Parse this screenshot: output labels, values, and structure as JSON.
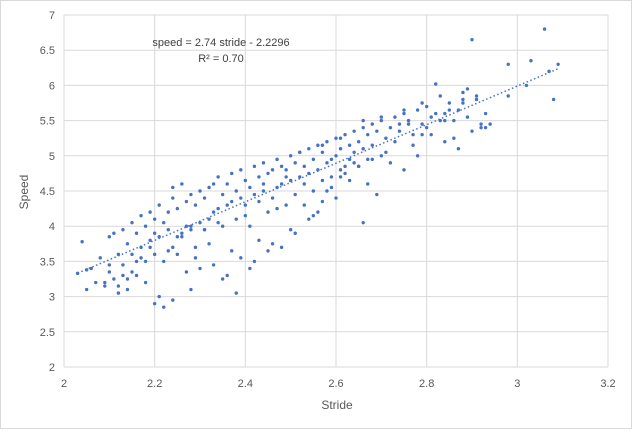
{
  "chart_data": {
    "type": "scatter",
    "title": "",
    "xlabel": "Stride",
    "ylabel": "Speed",
    "xlim": [
      2,
      3.2
    ],
    "ylim": [
      2,
      7
    ],
    "xticks": [
      2,
      2.2,
      2.4,
      2.6,
      2.8,
      3,
      3.2
    ],
    "yticks": [
      2,
      2.5,
      3,
      3.5,
      4,
      4.5,
      5,
      5.5,
      6,
      6.5,
      7
    ],
    "xtick_labels": [
      "2",
      "2.2",
      "2.4",
      "2.6",
      "2.8",
      "3",
      "3.2"
    ],
    "ytick_labels": [
      "2",
      "2.5",
      "3",
      "3.5",
      "4",
      "4.5",
      "5",
      "5.5",
      "6",
      "6.5",
      "7"
    ],
    "grid": "vertical and horizontal major gridlines",
    "legend": "none",
    "colors": {
      "points": "#4472c4",
      "trendline": "#4472c4",
      "gridlines": "#d9d9d9"
    },
    "trendline": {
      "type": "linear",
      "slope": 2.74,
      "intercept": -2.2296,
      "x_range": [
        2.03,
        3.09
      ],
      "style": "dotted"
    },
    "annotations": {
      "equation": "speed = 2.74 stride - 2.2296",
      "r_squared": "R² = 0.70"
    },
    "series": [
      {
        "x": [
          2.03,
          2.04,
          2.05,
          2.06,
          2.08,
          2.09,
          2.1,
          2.1,
          2.11,
          2.11,
          2.12,
          2.12,
          2.13,
          2.13,
          2.14,
          2.14,
          2.15,
          2.15,
          2.16,
          2.16,
          2.17,
          2.17,
          2.18,
          2.18,
          2.19,
          2.19,
          2.2,
          2.2,
          2.21,
          2.21,
          2.22,
          2.22,
          2.23,
          2.23,
          2.24,
          2.24,
          2.25,
          2.25,
          2.26,
          2.26,
          2.27,
          2.27,
          2.28,
          2.28,
          2.29,
          2.29,
          2.3,
          2.3,
          2.31,
          2.31,
          2.32,
          2.32,
          2.33,
          2.33,
          2.34,
          2.34,
          2.35,
          2.35,
          2.36,
          2.36,
          2.37,
          2.37,
          2.38,
          2.38,
          2.39,
          2.39,
          2.4,
          2.4,
          2.41,
          2.41,
          2.42,
          2.42,
          2.43,
          2.43,
          2.44,
          2.44,
          2.45,
          2.45,
          2.46,
          2.46,
          2.47,
          2.47,
          2.48,
          2.48,
          2.49,
          2.49,
          2.5,
          2.5,
          2.51,
          2.51,
          2.52,
          2.52,
          2.53,
          2.53,
          2.54,
          2.54,
          2.55,
          2.55,
          2.56,
          2.56,
          2.57,
          2.57,
          2.58,
          2.58,
          2.59,
          2.59,
          2.6,
          2.6,
          2.61,
          2.61,
          2.62,
          2.62,
          2.63,
          2.63,
          2.64,
          2.64,
          2.65,
          2.65,
          2.66,
          2.66,
          2.67,
          2.67,
          2.68,
          2.68,
          2.69,
          2.7,
          2.71,
          2.72,
          2.73,
          2.74,
          2.75,
          2.76,
          2.77,
          2.78,
          2.79,
          2.8,
          2.81,
          2.82,
          2.83,
          2.84,
          2.85,
          2.86,
          2.87,
          2.88,
          2.89,
          2.9,
          2.91,
          2.92,
          2.93,
          2.98,
          3.03,
          3.06,
          3.07,
          3.08,
          3.09,
          2.05,
          2.09,
          2.12,
          2.14,
          2.18,
          2.21,
          2.24,
          2.27,
          2.3,
          2.33,
          2.36,
          2.39,
          2.42,
          2.45,
          2.48,
          2.51,
          2.54,
          2.57,
          2.6,
          2.63,
          2.66,
          2.69,
          2.72,
          2.75,
          2.78,
          2.81,
          2.84,
          2.87,
          2.9,
          2.2,
          2.22,
          2.25,
          2.28,
          2.35,
          2.38,
          2.41,
          2.46,
          2.5,
          2.53,
          2.56,
          2.59,
          2.62,
          2.65,
          2.68,
          2.71,
          2.74,
          2.77,
          2.8,
          2.83,
          2.86,
          2.89,
          2.92,
          2.13,
          2.16,
          2.19,
          2.23,
          2.26,
          2.29,
          2.32,
          2.37,
          2.43,
          2.47,
          2.55,
          2.58,
          2.61,
          2.64,
          2.67,
          2.7,
          2.73,
          2.76,
          2.79,
          2.82,
          2.85,
          2.88,
          2.91,
          2.94,
          2.07,
          2.1,
          2.15,
          2.17,
          2.2,
          2.24,
          2.28,
          2.31,
          2.34,
          2.4,
          2.44,
          2.49,
          2.52,
          2.57,
          2.61,
          2.66,
          2.7,
          2.75,
          2.79,
          2.84,
          2.88,
          2.93,
          2.98,
          3.02
        ],
        "y": [
          3.33,
          3.78,
          3.38,
          3.4,
          3.55,
          3.2,
          3.85,
          3.35,
          3.9,
          3.25,
          3.6,
          3.15,
          3.95,
          3.45,
          3.75,
          3.1,
          4.05,
          3.6,
          3.9,
          3.3,
          4.15,
          3.7,
          4.0,
          3.5,
          4.2,
          3.8,
          4.1,
          3.6,
          4.3,
          3.85,
          4.05,
          3.5,
          4.2,
          3.95,
          4.55,
          3.7,
          4.25,
          3.85,
          4.6,
          3.9,
          4.35,
          4.0,
          4.45,
          3.95,
          4.3,
          3.7,
          4.5,
          4.05,
          4.4,
          3.95,
          4.55,
          4.1,
          4.6,
          4.2,
          4.7,
          4.25,
          4.45,
          4.0,
          4.6,
          4.3,
          4.75,
          4.35,
          4.5,
          4.1,
          4.8,
          4.4,
          4.65,
          4.3,
          4.55,
          4.0,
          4.85,
          4.45,
          4.7,
          4.35,
          4.9,
          4.5,
          4.75,
          4.2,
          4.8,
          4.4,
          4.95,
          4.55,
          4.85,
          4.6,
          4.7,
          4.3,
          5.0,
          4.65,
          4.9,
          4.45,
          5.05,
          4.7,
          4.85,
          4.6,
          5.1,
          4.75,
          4.95,
          4.5,
          5.15,
          4.8,
          5.05,
          4.65,
          5.2,
          4.9,
          4.95,
          4.7,
          5.25,
          5.0,
          5.1,
          4.8,
          5.3,
          4.85,
          5.15,
          4.95,
          5.35,
          5.05,
          5.2,
          4.85,
          5.4,
          5.1,
          5.3,
          4.95,
          5.45,
          5.15,
          5.35,
          5.5,
          5.25,
          5.4,
          5.55,
          5.45,
          5.6,
          5.5,
          5.3,
          5.65,
          5.45,
          5.7,
          5.55,
          6.02,
          5.85,
          5.6,
          5.75,
          5.5,
          5.65,
          5.9,
          5.95,
          6.65,
          5.8,
          5.45,
          5.4,
          6.3,
          6.35,
          6.8,
          6.2,
          5.8,
          6.3,
          3.1,
          3.15,
          3.05,
          3.25,
          3.2,
          3.0,
          2.95,
          3.35,
          3.4,
          3.45,
          3.3,
          3.55,
          3.5,
          3.65,
          3.7,
          3.9,
          4.1,
          4.35,
          4.4,
          4.65,
          4.05,
          4.45,
          4.9,
          4.8,
          5.0,
          5.3,
          5.2,
          5.1,
          5.35,
          2.9,
          2.85,
          3.6,
          3.1,
          3.25,
          3.05,
          3.4,
          3.75,
          3.95,
          4.3,
          4.2,
          4.55,
          4.75,
          4.85,
          4.95,
          5.05,
          5.35,
          5.15,
          5.4,
          5.5,
          5.25,
          5.55,
          5.4,
          3.3,
          3.5,
          3.7,
          3.65,
          3.85,
          3.55,
          3.75,
          3.65,
          3.8,
          4.25,
          4.15,
          4.5,
          4.7,
          4.9,
          4.6,
          5.0,
          5.2,
          5.45,
          5.3,
          5.6,
          5.65,
          5.75,
          5.85,
          5.45,
          3.2,
          3.45,
          3.35,
          3.55,
          3.9,
          4.4,
          4.0,
          3.95,
          4.05,
          4.15,
          4.6,
          4.8,
          5.05,
          5.15,
          5.25,
          5.5,
          5.55,
          5.65,
          5.75,
          5.5,
          5.8,
          5.6,
          5.85,
          6.0
        ]
      }
    ]
  }
}
